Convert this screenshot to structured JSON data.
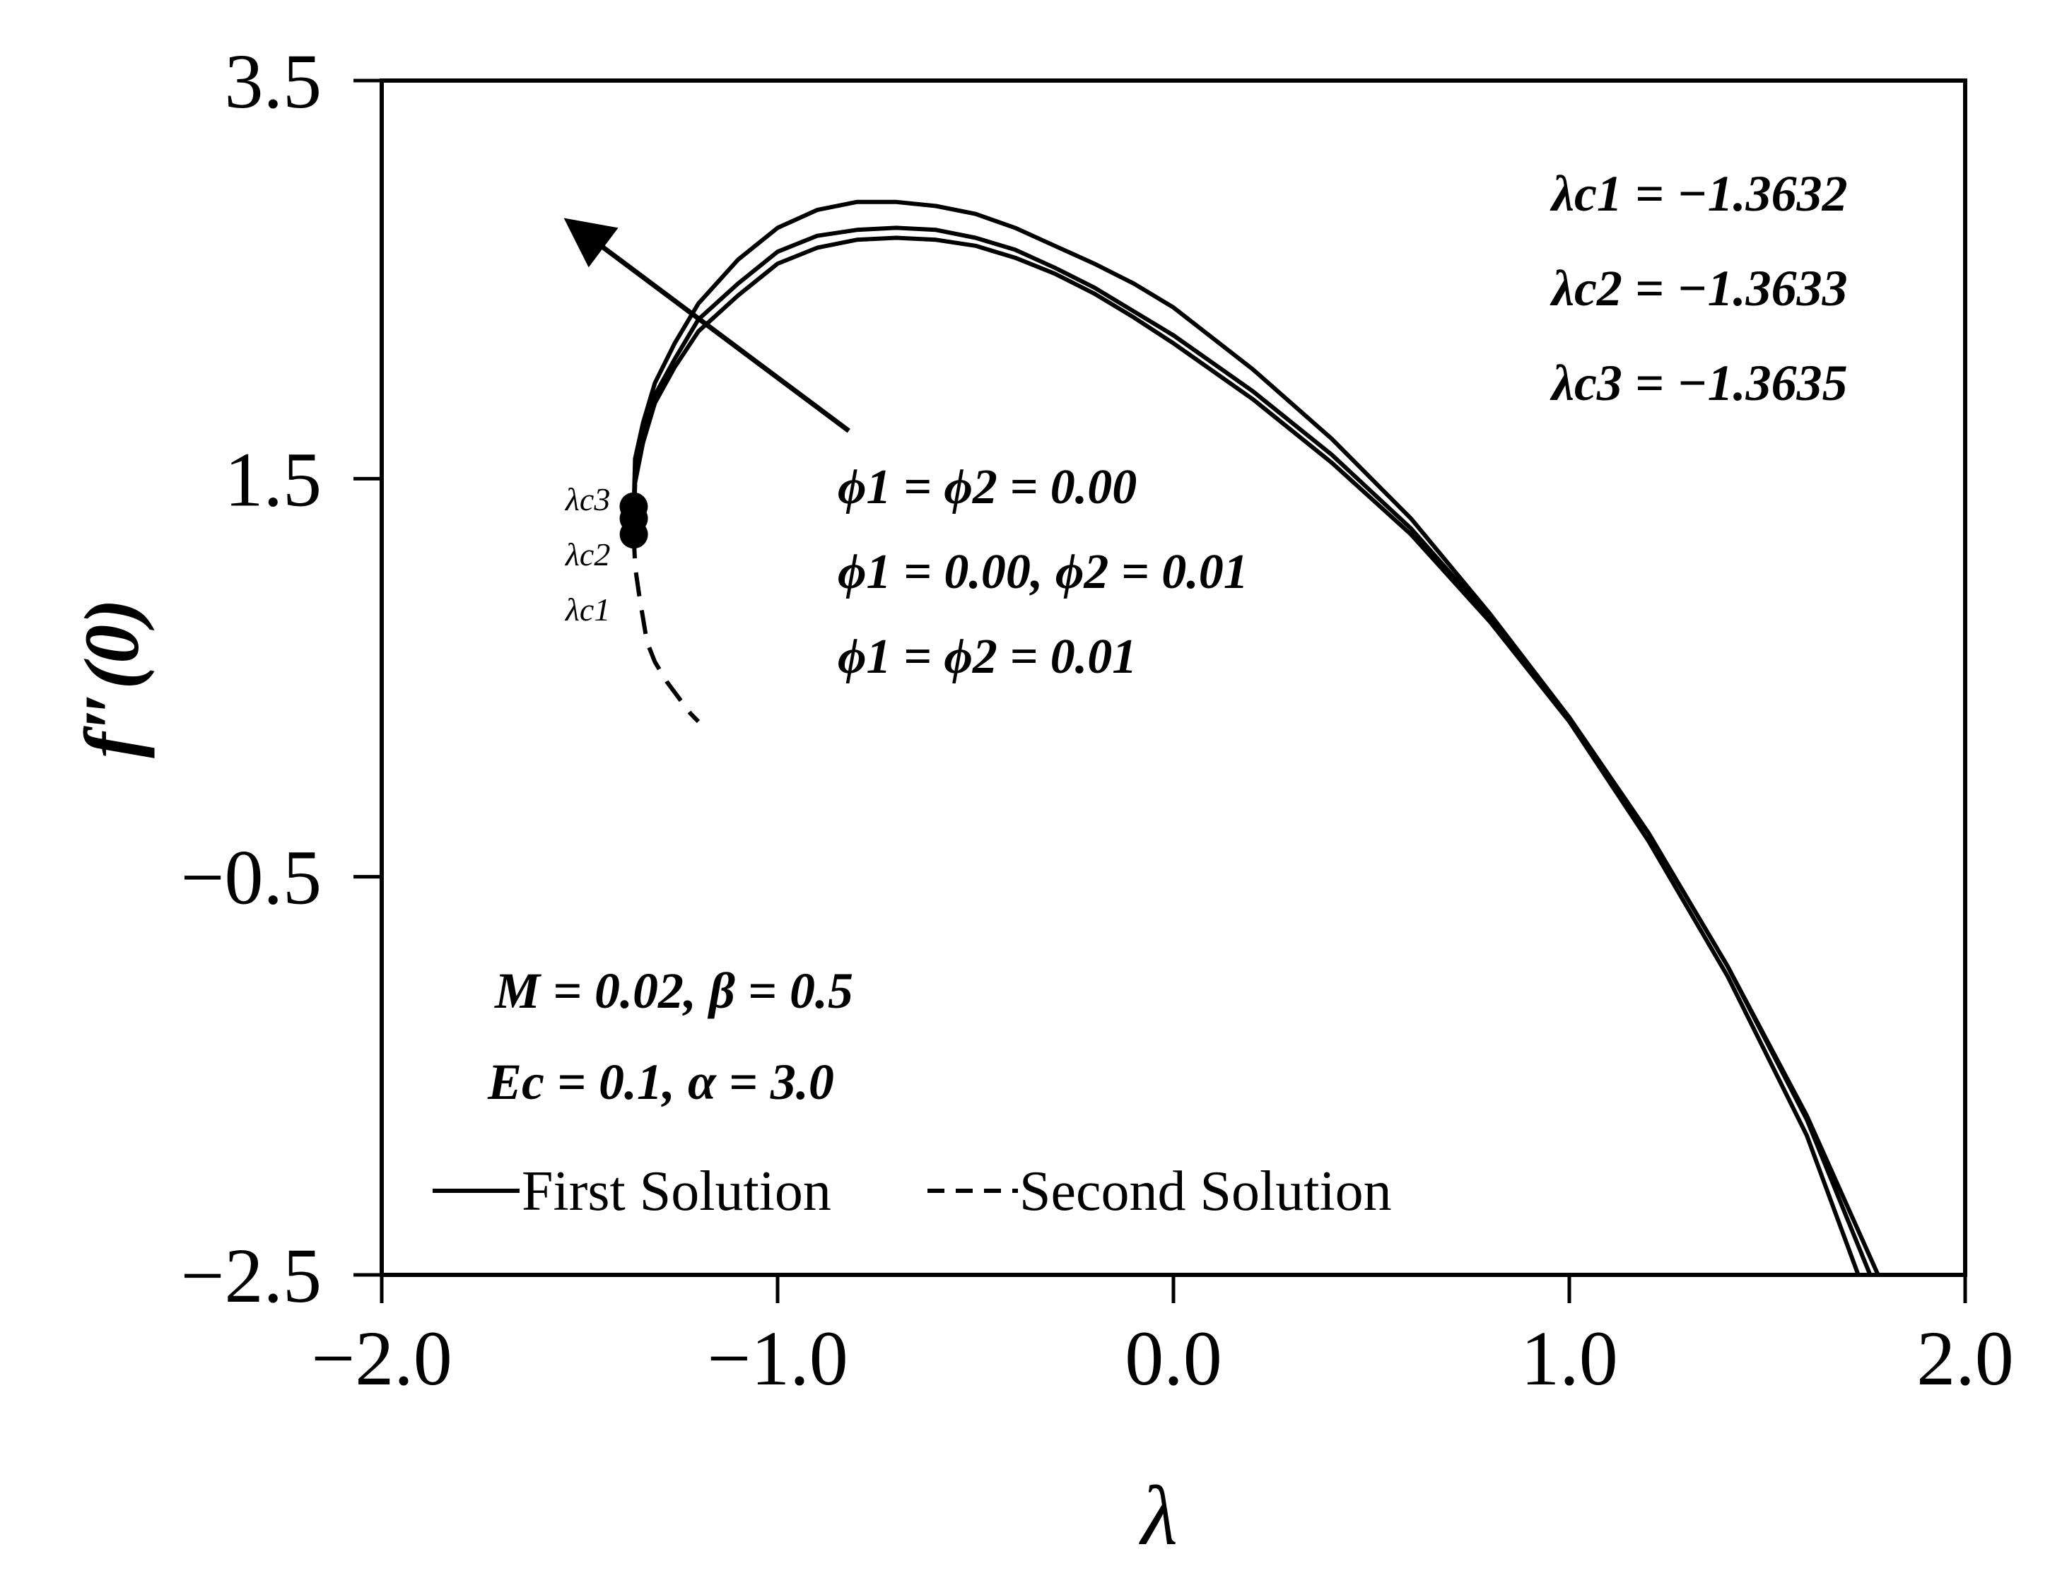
{
  "chart_data": {
    "type": "line",
    "xlabel": "λ",
    "ylabel": "f″(0)",
    "xlim": [
      -2.0,
      2.0
    ],
    "ylim": [
      -2.5,
      3.5
    ],
    "x_ticks": [
      -2.0,
      -1.0,
      0.0,
      1.0,
      2.0
    ],
    "x_tick_labels": [
      "−2.0",
      "−1.0",
      "0.0",
      "1.0",
      "2.0"
    ],
    "y_ticks": [
      3.5,
      1.5,
      -0.5,
      -2.5
    ],
    "y_tick_labels": [
      "3.5",
      "1.5",
      "−0.5",
      "−2.5"
    ],
    "grid": false,
    "series": [
      {
        "style": "solid",
        "x": [
          -1.3632,
          -1.36,
          -1.34,
          -1.31,
          -1.26,
          -1.2,
          -1.1,
          -1.0,
          -0.9,
          -0.8,
          -0.7,
          -0.6,
          -0.5,
          -0.4,
          -0.3,
          -0.2,
          -0.1,
          0.0,
          0.2,
          0.4,
          0.6,
          0.8,
          1.0,
          1.2,
          1.4,
          1.6,
          1.78
        ],
        "y": [
          1.36,
          1.6,
          1.78,
          1.98,
          2.18,
          2.38,
          2.6,
          2.76,
          2.85,
          2.89,
          2.89,
          2.87,
          2.83,
          2.76,
          2.67,
          2.58,
          2.48,
          2.36,
          2.05,
          1.7,
          1.3,
          0.82,
          0.3,
          -0.28,
          -0.95,
          -1.7,
          -2.5
        ]
      },
      {
        "style": "solid",
        "x": [
          -1.3633,
          -1.36,
          -1.34,
          -1.31,
          -1.26,
          -1.2,
          -1.1,
          -1.0,
          -0.9,
          -0.8,
          -0.7,
          -0.6,
          -0.5,
          -0.4,
          -0.3,
          -0.2,
          -0.1,
          0.0,
          0.2,
          0.4,
          0.6,
          0.8,
          1.0,
          1.2,
          1.4,
          1.6,
          1.76
        ],
        "y": [
          1.3,
          1.55,
          1.72,
          1.92,
          2.1,
          2.3,
          2.48,
          2.64,
          2.72,
          2.75,
          2.76,
          2.75,
          2.71,
          2.65,
          2.56,
          2.46,
          2.34,
          2.22,
          1.94,
          1.62,
          1.25,
          0.8,
          0.3,
          -0.28,
          -0.95,
          -1.72,
          -2.5
        ]
      },
      {
        "style": "solid",
        "x": [
          -1.3635,
          -1.36,
          -1.34,
          -1.31,
          -1.26,
          -1.2,
          -1.1,
          -1.0,
          -0.9,
          -0.8,
          -0.7,
          -0.6,
          -0.5,
          -0.4,
          -0.3,
          -0.2,
          -0.1,
          0.0,
          0.2,
          0.4,
          0.6,
          0.8,
          1.0,
          1.2,
          1.4,
          1.6,
          1.73
        ],
        "y": [
          1.22,
          1.48,
          1.68,
          1.88,
          2.06,
          2.24,
          2.42,
          2.58,
          2.66,
          2.7,
          2.71,
          2.7,
          2.67,
          2.61,
          2.53,
          2.43,
          2.31,
          2.18,
          1.9,
          1.58,
          1.22,
          0.78,
          0.28,
          -0.32,
          -1.0,
          -1.8,
          -2.5
        ]
      },
      {
        "style": "dashed",
        "x": [
          -1.3632,
          -1.36,
          -1.35,
          -1.34,
          -1.33,
          -1.31,
          -1.28,
          -1.25,
          -1.22,
          -1.2
        ],
        "y": [
          1.22,
          1.06,
          0.92,
          0.8,
          0.68,
          0.58,
          0.48,
          0.4,
          0.32,
          0.28
        ]
      }
    ],
    "critical_points": [
      {
        "label": "λc1",
        "x": -1.3632,
        "y": 1.22
      },
      {
        "label": "λc2",
        "x": -1.3633,
        "y": 1.3
      },
      {
        "label": "λc3",
        "x": -1.3635,
        "y": 1.36
      }
    ],
    "arrow": {
      "from": [
        -0.82,
        1.74
      ],
      "to": [
        -1.5,
        2.75
      ]
    },
    "annotations": {
      "critical_values": [
        "λc1 = −1.3632",
        "λc2 = −1.3633",
        "λc3 = −1.3635"
      ],
      "phi_labels": [
        "ϕ1 = ϕ2 = 0.00",
        "ϕ1 = 0.00, ϕ2 = 0.01",
        "ϕ1 = ϕ2 = 0.01"
      ],
      "params": [
        "M = 0.02, β = 0.5",
        "Ec = 0.1, α = 3.0"
      ]
    },
    "legend": {
      "placement": "bottom-left",
      "entries": [
        {
          "label": "First Solution",
          "style": "solid"
        },
        {
          "label": "Second Solution",
          "style": "dashed"
        }
      ]
    }
  }
}
